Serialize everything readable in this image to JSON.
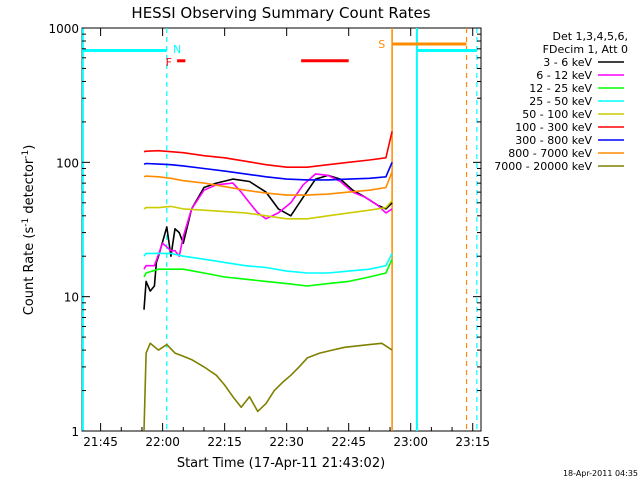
{
  "chart_data": {
    "type": "line",
    "title": "HESSI Observing Summary Count Rates",
    "xlabel": "Start Time (17-Apr-11 21:43:02)",
    "ylabel": "Count Rate (s",
    "ylabel_sup1": "-1",
    "ylabel_mid": " detector",
    "ylabel_sup2": "-1",
    "ylabel_end": ")",
    "yscale": "log",
    "ylim": [
      1,
      1000
    ],
    "xlim_minutes": [
      -4.5,
      92
    ],
    "x_ticks": [
      {
        "label": "21:45",
        "min": 0
      },
      {
        "label": "22:00",
        "min": 15
      },
      {
        "label": "22:15",
        "min": 30
      },
      {
        "label": "22:30",
        "min": 45
      },
      {
        "label": "22:45",
        "min": 60
      },
      {
        "label": "23:00",
        "min": 75
      },
      {
        "label": "23:15",
        "min": 90
      }
    ],
    "y_ticks": [
      {
        "label": "1",
        "v": 1
      },
      {
        "label": "10",
        "v": 10
      },
      {
        "label": "100",
        "v": 100
      },
      {
        "label": "1000",
        "v": 1000
      }
    ],
    "legend_header": [
      "Det 1,3,4,5,6,",
      "FDecim 1, Att 0"
    ],
    "timestamp": "18-Apr-2011 04:35",
    "series": [
      {
        "name": "3 - 6 keV",
        "color": "#000000",
        "x": [
          10.5,
          11,
          12,
          13,
          13.5,
          14,
          16,
          17,
          18,
          19,
          20,
          22,
          25,
          28,
          32,
          36,
          40,
          43,
          46,
          49,
          52,
          55,
          58,
          61,
          64,
          67,
          69,
          70.5
        ],
        "y": [
          8,
          13,
          11,
          12,
          18,
          20,
          33,
          20,
          32,
          30,
          25,
          45,
          65,
          70,
          75,
          72,
          60,
          45,
          40,
          55,
          75,
          80,
          75,
          62,
          55,
          48,
          45,
          50
        ]
      },
      {
        "name": "6 - 12 keV",
        "color": "#ff00ff",
        "x": [
          10.5,
          11,
          13,
          15,
          17,
          18,
          19,
          20,
          22,
          25,
          28,
          32,
          34,
          36,
          38,
          40,
          43,
          46,
          49,
          52,
          55,
          58,
          61,
          64,
          67,
          69,
          70.5
        ],
        "y": [
          16,
          17,
          17,
          25,
          22,
          22,
          20,
          28,
          45,
          62,
          68,
          70,
          60,
          50,
          42,
          38,
          42,
          50,
          68,
          82,
          80,
          72,
          60,
          55,
          48,
          42,
          45
        ]
      },
      {
        "name": "12 - 25 keV",
        "color": "#00ff00",
        "x": [
          10.5,
          11,
          14,
          17,
          20,
          25,
          30,
          35,
          40,
          45,
          50,
          55,
          60,
          65,
          69,
          70.5
        ],
        "y": [
          14,
          15,
          16,
          16,
          16,
          15,
          14,
          13.5,
          13,
          12.5,
          12,
          12.5,
          13,
          14,
          15,
          19
        ]
      },
      {
        "name": "25 - 50 keV",
        "color": "#00ffff",
        "x": [
          10.5,
          11,
          14,
          17,
          20,
          25,
          30,
          35,
          40,
          45,
          50,
          55,
          60,
          65,
          69,
          70.5
        ],
        "y": [
          20,
          21,
          21,
          21,
          20,
          19,
          18,
          17,
          16.5,
          15.5,
          15,
          15,
          15.5,
          16,
          17,
          21
        ]
      },
      {
        "name": "50 - 100 keV",
        "color": "#cccc00",
        "x": [
          10.5,
          11,
          14,
          17,
          20,
          25,
          30,
          35,
          40,
          45,
          50,
          55,
          60,
          65,
          69,
          70.5
        ],
        "y": [
          45,
          46,
          46,
          47,
          45,
          44,
          43,
          42,
          40,
          38,
          38,
          40,
          42,
          44,
          46,
          52
        ]
      },
      {
        "name": "100 - 300 keV",
        "color": "#ff0000",
        "x": [
          10.5,
          11,
          14,
          17,
          20,
          25,
          30,
          35,
          40,
          45,
          50,
          55,
          60,
          65,
          69,
          70.5
        ],
        "y": [
          120,
          121,
          122,
          120,
          118,
          112,
          108,
          102,
          96,
          92,
          92,
          96,
          100,
          104,
          108,
          170
        ]
      },
      {
        "name": "300 - 800 keV",
        "color": "#0000ff",
        "x": [
          10.5,
          11,
          14,
          17,
          20,
          25,
          30,
          35,
          40,
          45,
          50,
          55,
          60,
          65,
          69,
          70.5
        ],
        "y": [
          97,
          98,
          97,
          96,
          94,
          90,
          86,
          82,
          78,
          75,
          74,
          74,
          75,
          76,
          78,
          100
        ]
      },
      {
        "name": "800 - 7000 keV",
        "color": "#ff8c00",
        "x": [
          10.5,
          11,
          14,
          17,
          20,
          25,
          30,
          35,
          40,
          45,
          50,
          55,
          60,
          65,
          69,
          70.5
        ],
        "y": [
          78,
          79,
          78,
          76,
          73,
          70,
          66,
          62,
          59,
          57,
          57,
          58,
          60,
          62,
          65,
          85
        ]
      },
      {
        "name": "7000 - 20000 keV",
        "color": "#808000",
        "x": [
          10.5,
          11,
          12,
          14,
          16,
          18,
          20,
          22,
          25,
          28,
          30,
          32,
          34,
          36,
          38,
          40,
          42,
          44,
          46,
          48,
          50,
          53,
          56,
          59,
          62,
          65,
          68,
          70.5
        ],
        "y": [
          1.0,
          3.8,
          4.5,
          4.0,
          4.4,
          3.8,
          3.6,
          3.4,
          3.0,
          2.6,
          2.2,
          1.8,
          1.5,
          1.8,
          1.4,
          1.6,
          2.0,
          2.3,
          2.6,
          3.0,
          3.5,
          3.8,
          4.0,
          4.2,
          4.3,
          4.4,
          4.5,
          4.0
        ]
      }
    ],
    "annotations": {
      "night_bars": [
        {
          "x1": -4.5,
          "x2": 16.0,
          "v": 680,
          "color": "#00ffff"
        },
        {
          "x1": 76.5,
          "x2": 91.0,
          "v": 680,
          "color": "#00ffff"
        }
      ],
      "night_lines_solid": [
        {
          "x": -4.3,
          "color": "#00ffff"
        },
        {
          "x": 76.5,
          "color": "#00ffff"
        }
      ],
      "night_lines_dashed": [
        {
          "x": 16.0,
          "color": "#00ffff"
        },
        {
          "x": 91.0,
          "color": "#00ffff"
        }
      ],
      "saa_bar": {
        "x1": 70.5,
        "x2": 88.5,
        "v": 760,
        "color": "#ff8c00"
      },
      "saa_line_solid": {
        "x": 70.5,
        "color": "#ff8c00"
      },
      "saa_line_dashed": {
        "x": 88.5,
        "color": "#ff8c00"
      },
      "flare_bars": [
        {
          "x1": 18.5,
          "x2": 20.5,
          "v": 570,
          "color": "#ff0000"
        },
        {
          "x1": 48.5,
          "x2": 60.0,
          "v": 570,
          "color": "#ff0000"
        }
      ],
      "letters": [
        {
          "text": "N",
          "x": 18.5,
          "v": 700,
          "color": "#00ffff"
        },
        {
          "text": "F",
          "x": 16.5,
          "v": 560,
          "color": "#ff0000"
        },
        {
          "text": "S",
          "x": 68.0,
          "v": 760,
          "color": "#ff8c00"
        }
      ]
    }
  }
}
